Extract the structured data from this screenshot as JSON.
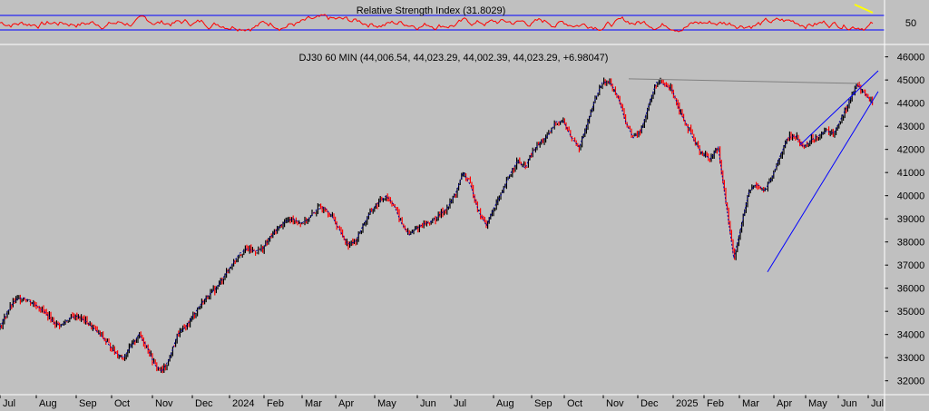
{
  "chart_data": [
    {
      "type": "line",
      "title": "Relative Strength Index (31.8029)",
      "indicator": "Relative Strength Index",
      "last_value": 31.8029,
      "y_ticks": [
        50
      ],
      "levels": [
        30,
        70
      ],
      "series_color": "#ff0000",
      "level_color": "#0000ff",
      "highlight_color": "#ffff00"
    },
    {
      "type": "line",
      "title": "DJ30 60 MIN (44,006.54, 44,023.29, 44,002.39, 44,023.29, +6.98047)",
      "symbol": "DJ30",
      "timeframe": "60 MIN",
      "ohlc": {
        "open": 44006.54,
        "high": 44023.29,
        "low": 44002.39,
        "close": 44023.29,
        "change": 6.98047
      },
      "ylim": [
        31400,
        46300
      ],
      "y_ticks": [
        32000,
        33000,
        34000,
        35000,
        36000,
        37000,
        38000,
        39000,
        40000,
        41000,
        42000,
        43000,
        44000,
        45000,
        46000
      ],
      "y_tick_labels": [
        "32000",
        "33000",
        "34000",
        "35000",
        "36000",
        "37000",
        "38000",
        "39000",
        "40000",
        "41000",
        "42000",
        "43000",
        "44000",
        "45000",
        "46000"
      ],
      "x_tick_labels": [
        "Jul",
        "Aug",
        "Sep",
        "Oct",
        "Nov",
        "Dec",
        "2024",
        "Feb",
        "Mar",
        "Apr",
        "May",
        "Jun",
        "Jul",
        "Aug",
        "Sep",
        "Oct",
        "Nov",
        "Dec",
        "2025",
        "Feb",
        "Mar",
        "Apr",
        "May",
        "Jun",
        "Jul"
      ],
      "series": [
        {
          "values": [
            34300,
            35000,
            35500,
            35600,
            35400,
            35200,
            34900,
            34500,
            34400,
            34700,
            34800,
            34600,
            34300,
            34000,
            33600,
            33200,
            33000,
            33500,
            34000,
            33500,
            32700,
            32400,
            33000,
            34000,
            34300,
            34800,
            35300,
            35700,
            36000,
            36500,
            37000,
            37500,
            37700,
            37600,
            37700,
            38200,
            38600,
            38900,
            39000,
            38800,
            39000,
            39400,
            39500,
            39100,
            38500,
            37900,
            38000,
            38700,
            39300,
            39700,
            40000,
            39600,
            38800,
            38300,
            38600,
            38800,
            38900,
            39200,
            39500,
            40100,
            41000,
            40400,
            39300,
            38700,
            39500,
            40100,
            40900,
            41500,
            41200,
            41900,
            42300,
            42600,
            43200,
            43200,
            42500,
            42100,
            43000,
            44100,
            44900,
            44900,
            44300,
            43200,
            42500,
            42800,
            43900,
            44900,
            44800,
            44600,
            43700,
            43000,
            42300,
            41800,
            41600,
            42100,
            39700,
            37300,
            38700,
            40200,
            40500,
            40200,
            40800,
            41700,
            42500,
            42600,
            42100,
            42400,
            42600,
            42800,
            42700,
            43400,
            44100,
            44800,
            44400,
            44000
          ]
        }
      ],
      "annotations": [
        {
          "type": "trendline",
          "from": [
            "Nov 2024",
            45050
          ],
          "to": [
            "Jun 2025",
            44850
          ],
          "color": "#808080"
        },
        {
          "type": "trendline",
          "from": [
            "Apr 2025",
            36700
          ],
          "to": [
            "Jul 2025",
            44500
          ],
          "color": "#0000ff"
        },
        {
          "type": "trendline",
          "from": [
            "May 2025",
            42200
          ],
          "to": [
            "Jul 2025",
            45400
          ],
          "color": "#0000ff"
        }
      ],
      "candle_colors": {
        "up": "#000000",
        "down": "#ff0000",
        "trend": "#0000a0"
      },
      "grid": false
    }
  ]
}
